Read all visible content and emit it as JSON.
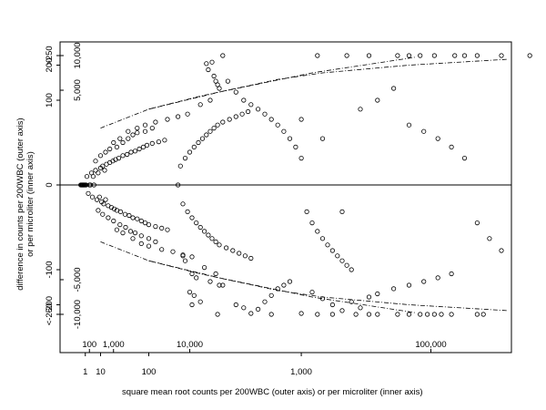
{
  "chart_data": {
    "type": "scatter",
    "x_scale": "sqrt",
    "y_scale": "sqrt-signed",
    "xlabel": "square mean root counts per 200WBC (outer axis) or per microliter (inner axis)",
    "ylabel_line1": "difference in counts per 200WBC (outer axis)",
    "ylabel_line2": "or per microliter (inner axis)",
    "x_outer_ticks": [
      {
        "value": 1,
        "label": "1"
      },
      {
        "value": 10,
        "label": "10"
      },
      {
        "value": 100,
        "label": "100"
      },
      {
        "value": 1000,
        "label": "1,000"
      }
    ],
    "x_inner_ticks": [
      {
        "value": 100,
        "label": "100"
      },
      {
        "value": 1000,
        "label": "1,000"
      },
      {
        "value": 10000,
        "label": "10,000"
      },
      {
        "value": 100000,
        "label": "100,000"
      }
    ],
    "y_outer_ticks": [
      {
        "value": 250,
        "label": ">250"
      },
      {
        "value": 200,
        "label": "200"
      },
      {
        "value": 100,
        "label": "100"
      },
      {
        "value": 0,
        "label": "0"
      },
      {
        "value": -100,
        "label": "-100"
      },
      {
        "value": -200,
        "label": "-200"
      },
      {
        "value": -250,
        "label": "<-250"
      }
    ],
    "y_inner_ticks": [
      {
        "value": 10000,
        "label": "10,000"
      },
      {
        "value": 5000,
        "label": "5,000"
      },
      {
        "value": -5000,
        "label": "-5,000"
      },
      {
        "value": -10000,
        "label": "-10,000"
      }
    ],
    "reference_line_y": 0,
    "limit_curves": [
      {
        "style": "dashdot",
        "points": [
          [
            100,
            80
          ],
          [
            400,
            120
          ],
          [
            1100,
            175
          ],
          [
            2300,
            228
          ]
        ]
      },
      {
        "style": "dashdot",
        "points": [
          [
            100,
            -80
          ],
          [
            400,
            -120
          ],
          [
            1100,
            -175
          ],
          [
            2300,
            -228
          ]
        ]
      },
      {
        "style": "dashdot",
        "points": [
          [
            10,
            45
          ],
          [
            100,
            80
          ],
          [
            300,
            110
          ],
          [
            500,
            130
          ],
          [
            800,
            155
          ],
          [
            1200,
            175
          ],
          [
            2200,
            200
          ],
          [
            3700,
            220
          ]
        ]
      },
      {
        "style": "dashdot",
        "points": [
          [
            10,
            -45
          ],
          [
            100,
            -80
          ],
          [
            300,
            -110
          ],
          [
            500,
            -130
          ],
          [
            800,
            -155
          ],
          [
            1200,
            -175
          ],
          [
            2200,
            -200
          ],
          [
            3700,
            -220
          ]
        ]
      }
    ],
    "points": [
      [
        0.12,
        0
      ],
      [
        0.2,
        0
      ],
      [
        0.3,
        0
      ],
      [
        0.4,
        0
      ],
      [
        0.5,
        0
      ],
      [
        0.65,
        0
      ],
      [
        0.8,
        0
      ],
      [
        1.0,
        0
      ],
      [
        1.2,
        0
      ],
      [
        1.5,
        1
      ],
      [
        2,
        -1
      ],
      [
        2.5,
        0
      ],
      [
        3,
        0
      ],
      [
        3.5,
        2
      ],
      [
        4,
        -2
      ],
      [
        4.5,
        1
      ],
      [
        5,
        0
      ],
      [
        6,
        3
      ],
      [
        7,
        -3
      ],
      [
        8,
        2
      ],
      [
        9,
        -2
      ],
      [
        10,
        4
      ],
      [
        11,
        -4
      ],
      [
        12,
        5
      ],
      [
        13,
        -5
      ],
      [
        14,
        3
      ],
      [
        15,
        -3
      ],
      [
        16,
        6
      ],
      [
        18,
        -6
      ],
      [
        20,
        7
      ],
      [
        22,
        -7
      ],
      [
        24,
        8
      ],
      [
        26,
        -8
      ],
      [
        28,
        9
      ],
      [
        30,
        -9
      ],
      [
        33,
        10
      ],
      [
        36,
        -10
      ],
      [
        40,
        12
      ],
      [
        44,
        -12
      ],
      [
        48,
        13
      ],
      [
        52,
        -13
      ],
      [
        56,
        15
      ],
      [
        60,
        -15
      ],
      [
        65,
        16
      ],
      [
        70,
        -16
      ],
      [
        75,
        18
      ],
      [
        80,
        -18
      ],
      [
        85,
        20
      ],
      [
        90,
        -20
      ],
      [
        95,
        22
      ],
      [
        100,
        -22
      ],
      [
        110,
        24
      ],
      [
        120,
        -24
      ],
      [
        130,
        26
      ],
      [
        140,
        -26
      ],
      [
        150,
        28
      ],
      [
        160,
        -28
      ],
      [
        6,
        8
      ],
      [
        8,
        -9
      ],
      [
        10,
        12
      ],
      [
        12,
        -12
      ],
      [
        15,
        15
      ],
      [
        18,
        -15
      ],
      [
        20,
        18
      ],
      [
        25,
        -18
      ],
      [
        30,
        20
      ],
      [
        35,
        -22
      ],
      [
        40,
        25
      ],
      [
        45,
        -25
      ],
      [
        50,
        30
      ],
      [
        55,
        -30
      ],
      [
        60,
        35
      ],
      [
        65,
        -32
      ],
      [
        70,
        38
      ],
      [
        80,
        -36
      ],
      [
        90,
        40
      ],
      [
        100,
        -40
      ],
      [
        110,
        45
      ],
      [
        120,
        -45
      ],
      [
        25,
        25
      ],
      [
        30,
        -28
      ],
      [
        35,
        30
      ],
      [
        40,
        -32
      ],
      [
        50,
        40
      ],
      [
        60,
        -40
      ],
      [
        70,
        45
      ],
      [
        80,
        -48
      ],
      [
        90,
        50
      ],
      [
        100,
        -52
      ],
      [
        120,
        55
      ],
      [
        140,
        -58
      ],
      [
        160,
        60
      ],
      [
        180,
        -62
      ],
      [
        200,
        65
      ],
      [
        220,
        -68
      ],
      [
        240,
        70
      ],
      [
        260,
        -72
      ],
      [
        200,
        0
      ],
      [
        210,
        5
      ],
      [
        220,
        -5
      ],
      [
        230,
        10
      ],
      [
        240,
        -10
      ],
      [
        250,
        15
      ],
      [
        260,
        -15
      ],
      [
        270,
        20
      ],
      [
        280,
        -20
      ],
      [
        290,
        25
      ],
      [
        300,
        -25
      ],
      [
        310,
        30
      ],
      [
        320,
        -30
      ],
      [
        330,
        35
      ],
      [
        340,
        -35
      ],
      [
        350,
        40
      ],
      [
        360,
        -40
      ],
      [
        370,
        45
      ],
      [
        380,
        -45
      ],
      [
        390,
        50
      ],
      [
        400,
        -50
      ],
      [
        420,
        55
      ],
      [
        440,
        -55
      ],
      [
        460,
        60
      ],
      [
        480,
        -60
      ],
      [
        500,
        65
      ],
      [
        520,
        -65
      ],
      [
        540,
        70
      ],
      [
        560,
        -70
      ],
      [
        580,
        75
      ],
      [
        600,
        -75
      ],
      [
        300,
        90
      ],
      [
        320,
        -95
      ],
      [
        350,
        100
      ],
      [
        380,
        -110
      ],
      [
        400,
        130
      ],
      [
        420,
        -140
      ],
      [
        450,
        150
      ],
      [
        300,
        -190
      ],
      [
        260,
        -200
      ],
      [
        250,
        -160
      ],
      [
        270,
        -170
      ],
      [
        280,
        -120
      ],
      [
        260,
        -110
      ],
      [
        230,
        -80
      ],
      [
        220,
        -70
      ],
      [
        330,
        205
      ],
      [
        360,
        210
      ],
      [
        340,
        185
      ],
      [
        370,
        165
      ],
      [
        380,
        150
      ],
      [
        390,
        140
      ],
      [
        400,
        -140
      ],
      [
        350,
        -130
      ],
      [
        500,
        -200
      ],
      [
        550,
        -210
      ],
      [
        600,
        -230
      ],
      [
        650,
        -215
      ],
      [
        700,
        -190
      ],
      [
        750,
        -170
      ],
      [
        800,
        -150
      ],
      [
        850,
        -140
      ],
      [
        900,
        -130
      ],
      [
        500,
        120
      ],
      [
        550,
        100
      ],
      [
        600,
        90
      ],
      [
        650,
        80
      ],
      [
        700,
        70
      ],
      [
        750,
        60
      ],
      [
        800,
        50
      ],
      [
        850,
        40
      ],
      [
        900,
        30
      ],
      [
        950,
        20
      ],
      [
        1000,
        10
      ],
      [
        1050,
        -10
      ],
      [
        1100,
        -20
      ],
      [
        1150,
        -30
      ],
      [
        1200,
        -40
      ],
      [
        1250,
        -50
      ],
      [
        1300,
        -60
      ],
      [
        1350,
        -70
      ],
      [
        1400,
        -80
      ],
      [
        1450,
        -90
      ],
      [
        1500,
        -100
      ],
      [
        1100,
        -160
      ],
      [
        1200,
        -180
      ],
      [
        1300,
        -200
      ],
      [
        1400,
        -220
      ],
      [
        1500,
        -190
      ],
      [
        1600,
        -210
      ],
      [
        1000,
        -230
      ],
      [
        1700,
        -175
      ],
      [
        1800,
        -165
      ],
      [
        2000,
        -150
      ],
      [
        2200,
        -140
      ],
      [
        2400,
        -130
      ],
      [
        2600,
        -120
      ],
      [
        2800,
        -110
      ],
      [
        1600,
        80
      ],
      [
        1800,
        100
      ],
      [
        2000,
        130
      ],
      [
        2200,
        50
      ],
      [
        2400,
        40
      ],
      [
        2600,
        30
      ],
      [
        2800,
        20
      ],
      [
        3000,
        10
      ],
      [
        3200,
        -20
      ],
      [
        3400,
        -40
      ],
      [
        3600,
        -60
      ],
      [
        1000,
        60
      ],
      [
        1200,
        30
      ],
      [
        1400,
        -10
      ],
      [
        420,
        250
      ],
      [
        1150,
        250
      ],
      [
        1450,
        250
      ],
      [
        1700,
        250
      ],
      [
        2050,
        250
      ],
      [
        2200,
        250
      ],
      [
        2350,
        250
      ],
      [
        2550,
        250
      ],
      [
        2850,
        250
      ],
      [
        3000,
        250
      ],
      [
        3200,
        250
      ],
      [
        3600,
        250
      ],
      [
        4100,
        250
      ],
      [
        4600,
        250
      ],
      [
        390,
        -250
      ],
      [
        750,
        -250
      ],
      [
        1150,
        -250
      ],
      [
        1300,
        -250
      ],
      [
        1550,
        -250
      ],
      [
        1700,
        -250
      ],
      [
        1800,
        -250
      ],
      [
        2050,
        -250
      ],
      [
        2200,
        -250
      ],
      [
        2350,
        -250
      ],
      [
        2450,
        -250
      ],
      [
        2550,
        -250
      ],
      [
        2650,
        -250
      ],
      [
        2800,
        -250
      ],
      [
        3200,
        -250
      ],
      [
        3300,
        -250
      ]
    ]
  }
}
